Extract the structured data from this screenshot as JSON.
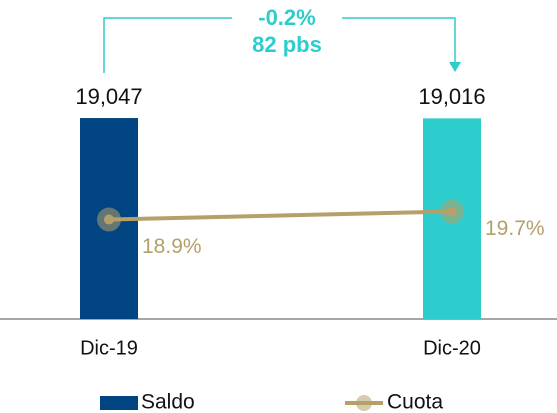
{
  "chart_data": {
    "type": "bar_line",
    "categories": [
      "Dic-19",
      "Dic-20"
    ],
    "series": [
      {
        "name": "Saldo",
        "type": "bar",
        "colors": [
          "#004481",
          "#2dcccd"
        ],
        "values": [
          19047,
          19016
        ],
        "value_labels": [
          "19,047",
          "19,016"
        ]
      },
      {
        "name": "Cuota",
        "type": "line",
        "axis": "y2",
        "color": "#b5a06a",
        "values": [
          18.9,
          19.7
        ],
        "value_labels": [
          "18.9%",
          "19.7%"
        ]
      }
    ],
    "annotations": [
      "-0.2%",
      "82 pbs"
    ],
    "annotation_color": "#2dcccd",
    "ylim": [
      0,
      20000
    ],
    "y2lim": [
      9,
      30
    ],
    "legend": "bottom"
  }
}
